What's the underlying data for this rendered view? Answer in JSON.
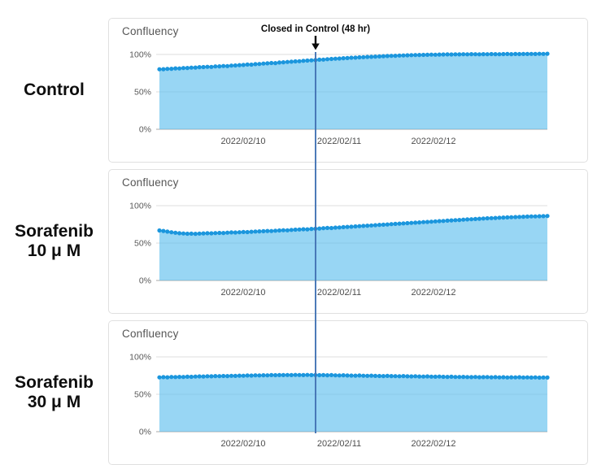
{
  "annotation": {
    "label": "Closed in Control (48 hr)",
    "line_color": "#4374b4",
    "arrow_color": "#0a0a0a"
  },
  "rows": [
    {
      "label_lines": [
        "Control",
        ""
      ]
    },
    {
      "label_lines": [
        "Sorafenib",
        "10 μ M"
      ]
    },
    {
      "label_lines": [
        "Sorafenib",
        "30 μ M"
      ]
    }
  ],
  "colors": {
    "marker_blue": "#1b96dd",
    "area_fill": "#59bdee",
    "gridline": "#dcdcdc",
    "zero_axis": "#a9a9a9",
    "tick_text": "#595959",
    "date_text": "#4d4d4d"
  },
  "chart_data": [
    {
      "type": "area",
      "title": "Confluency",
      "y_tick_labels": [
        "100%",
        "50%",
        "0%"
      ],
      "y_ticks": [
        100,
        50,
        0
      ],
      "x_tick_labels": [
        "2022/02/10",
        "2022/02/11",
        "2022/02/12"
      ],
      "ylim": [
        0,
        110
      ],
      "series": [
        {
          "name": "Control",
          "values": [
            80.2,
            80.3,
            80.8,
            80.9,
            81.4,
            81.3,
            81.9,
            82.0,
            82.4,
            82.5,
            83.0,
            83.1,
            83.5,
            83.4,
            84.0,
            84.1,
            84.6,
            84.5,
            85.1,
            85.3,
            85.8,
            86.0,
            86.5,
            86.4,
            87.1,
            87.3,
            87.8,
            88.2,
            88.6,
            88.5,
            89.2,
            89.6,
            90.0,
            90.3,
            90.8,
            91.0,
            91.5,
            91.8,
            92.2,
            92.5,
            93.0,
            93.2,
            93.7,
            94.0,
            94.3,
            94.6,
            95.0,
            95.2,
            95.6,
            95.8,
            96.2,
            96.4,
            96.7,
            96.9,
            97.2,
            97.4,
            97.7,
            97.9,
            98.1,
            98.3,
            98.6,
            98.7,
            98.9,
            99.1,
            99.2,
            99.4,
            99.5,
            99.6,
            99.8,
            99.7,
            99.9,
            100.0,
            100.1,
            100.0,
            100.2,
            100.1,
            100.3,
            100.2,
            100.4,
            100.3,
            100.2,
            100.4,
            100.3,
            100.5,
            100.4,
            100.3,
            100.5,
            100.6,
            100.4,
            100.6,
            100.5,
            100.7,
            100.6,
            100.8,
            100.7,
            100.9,
            100.8,
            101.0
          ]
        }
      ]
    },
    {
      "type": "area",
      "title": "Confluency",
      "y_tick_labels": [
        "100%",
        "50%",
        "0%"
      ],
      "y_ticks": [
        100,
        50,
        0
      ],
      "x_tick_labels": [
        "2022/02/10",
        "2022/02/11",
        "2022/02/12"
      ],
      "ylim": [
        0,
        110
      ],
      "series": [
        {
          "name": "Sorafenib 10 μM",
          "values": [
            66.8,
            66.2,
            65.3,
            64.5,
            63.8,
            63.2,
            62.8,
            62.5,
            62.6,
            62.4,
            62.7,
            62.9,
            63.1,
            63.0,
            63.4,
            63.6,
            63.5,
            63.9,
            64.2,
            64.1,
            64.5,
            64.8,
            64.7,
            65.1,
            65.4,
            65.6,
            65.9,
            66.2,
            66.1,
            66.5,
            66.9,
            67.2,
            67.1,
            67.6,
            67.9,
            68.2,
            68.5,
            68.4,
            68.9,
            69.2,
            69.5,
            69.9,
            70.2,
            70.1,
            70.6,
            70.9,
            71.3,
            71.6,
            71.9,
            72.3,
            72.6,
            72.9,
            73.3,
            73.6,
            73.9,
            74.3,
            74.6,
            74.9,
            75.3,
            75.6,
            76.0,
            76.3,
            76.6,
            77.0,
            77.3,
            77.6,
            78.0,
            78.3,
            78.6,
            79.0,
            79.3,
            79.6,
            80.0,
            80.3,
            80.6,
            80.9,
            81.3,
            81.6,
            81.9,
            82.2,
            82.5,
            82.8,
            83.1,
            83.4,
            83.6,
            83.9,
            84.1,
            84.4,
            84.6,
            84.8,
            85.0,
            85.2,
            85.4,
            85.6,
            85.7,
            85.9,
            86.0,
            86.2
          ]
        }
      ]
    },
    {
      "type": "area",
      "title": "Confluency",
      "y_tick_labels": [
        "100%",
        "50%",
        "0%"
      ],
      "y_ticks": [
        100,
        50,
        0
      ],
      "x_tick_labels": [
        "2022/02/10",
        "2022/02/11",
        "2022/02/12"
      ],
      "ylim": [
        0,
        110
      ],
      "series": [
        {
          "name": "Sorafenib 30 μM",
          "values": [
            72.6,
            72.9,
            72.7,
            73.1,
            73.0,
            73.3,
            73.2,
            73.5,
            73.4,
            73.7,
            73.9,
            73.8,
            74.1,
            74.0,
            74.3,
            74.2,
            74.5,
            74.4,
            74.7,
            74.6,
            74.9,
            74.8,
            75.1,
            75.0,
            75.3,
            75.2,
            75.4,
            75.3,
            75.6,
            75.5,
            75.7,
            75.6,
            75.8,
            75.7,
            75.9,
            75.8,
            75.7,
            75.9,
            75.6,
            75.8,
            75.5,
            75.7,
            75.4,
            75.6,
            75.3,
            75.2,
            75.4,
            75.1,
            75.0,
            74.9,
            75.1,
            74.8,
            74.7,
            74.9,
            74.6,
            74.5,
            74.4,
            74.6,
            74.3,
            74.2,
            74.1,
            74.3,
            74.0,
            73.9,
            74.1,
            73.8,
            73.7,
            73.9,
            73.6,
            73.5,
            73.7,
            73.4,
            73.3,
            73.5,
            73.2,
            73.1,
            73.3,
            73.0,
            72.9,
            73.1,
            72.8,
            72.9,
            73.0,
            72.7,
            72.9,
            72.6,
            72.8,
            72.5,
            72.7,
            72.6,
            72.8,
            72.5,
            72.6,
            72.4,
            72.6,
            72.3,
            72.5,
            72.4
          ]
        }
      ]
    }
  ]
}
